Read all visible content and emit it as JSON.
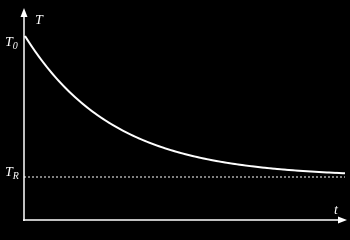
{
  "y_axis_label": "T",
  "x_axis_label": "t",
  "start_label": {
    "main": "T",
    "sub": "0"
  },
  "asymptote_label": {
    "main": "T",
    "sub": "R"
  }
}
